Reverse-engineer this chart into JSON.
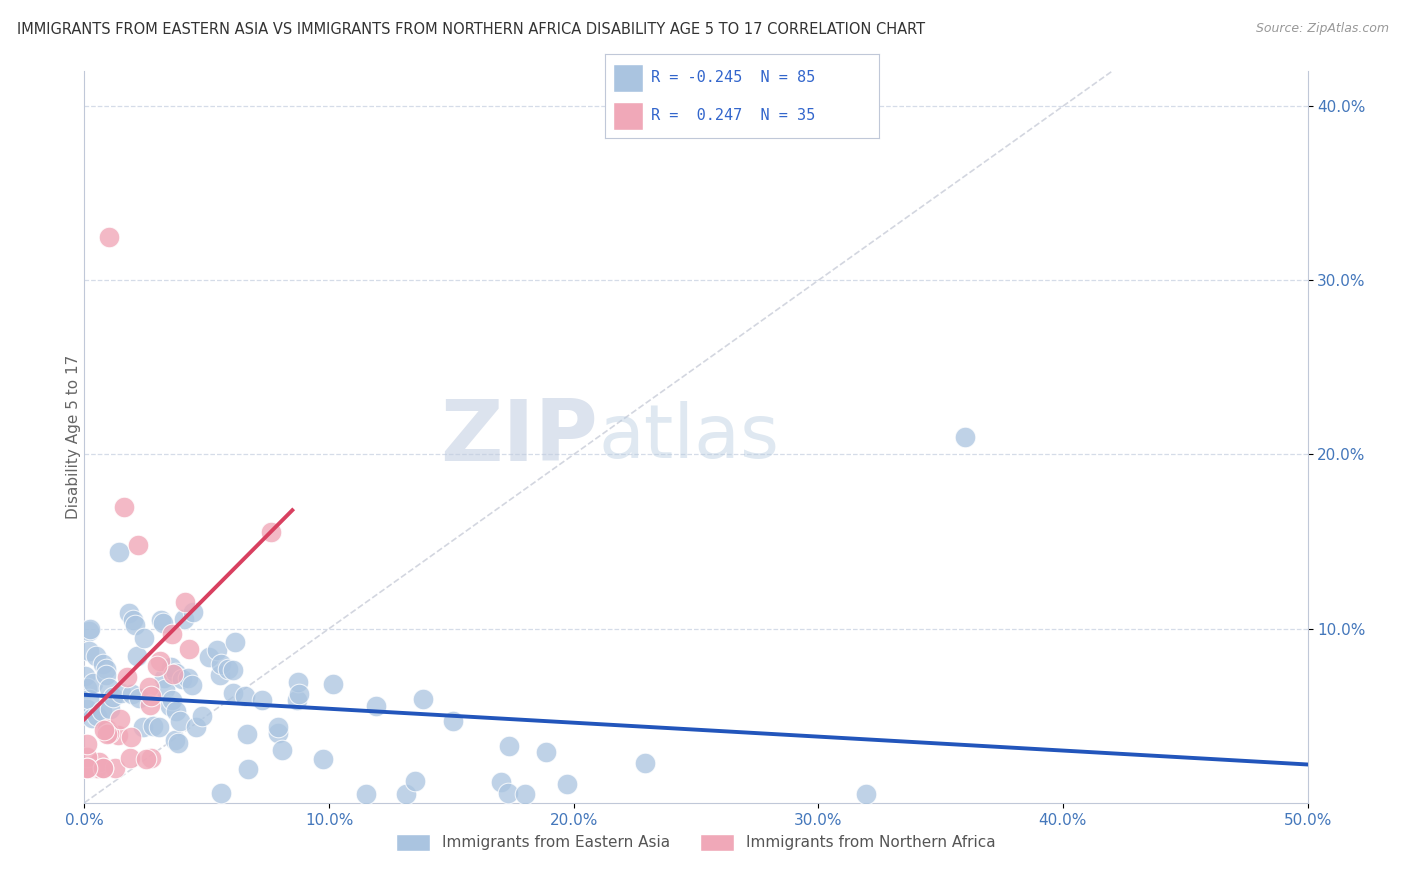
{
  "title": "IMMIGRANTS FROM EASTERN ASIA VS IMMIGRANTS FROM NORTHERN AFRICA DISABILITY AGE 5 TO 17 CORRELATION CHART",
  "source": "Source: ZipAtlas.com",
  "ylabel": "Disability Age 5 to 17",
  "xlim": [
    0.0,
    0.5
  ],
  "ylim": [
    -0.01,
    0.42
  ],
  "plot_ylim": [
    0.0,
    0.42
  ],
  "xticks": [
    0.0,
    0.1,
    0.2,
    0.3,
    0.4,
    0.5
  ],
  "yticks": [
    0.1,
    0.2,
    0.3,
    0.4
  ],
  "background_color": "#ffffff",
  "grid_color": "#d5dce8",
  "series_ea": {
    "name": "Immigrants from Eastern Asia",
    "color": "#aac4e0",
    "line_color": "#2255bb",
    "R": -0.245,
    "N": 85,
    "trend_x": [
      0.0,
      0.5
    ],
    "trend_y": [
      0.062,
      0.022
    ]
  },
  "series_na": {
    "name": "Immigrants from Northern Africa",
    "color": "#f0a8b8",
    "line_color": "#d84060",
    "R": 0.247,
    "N": 35,
    "trend_x": [
      0.0,
      0.085
    ],
    "trend_y": [
      0.048,
      0.168
    ]
  },
  "diagonal_color": "#c8ccd8",
  "legend_text_color": "#3366cc",
  "watermark_zip_color": "#c0cce0",
  "watermark_atlas_color": "#b8cce0"
}
